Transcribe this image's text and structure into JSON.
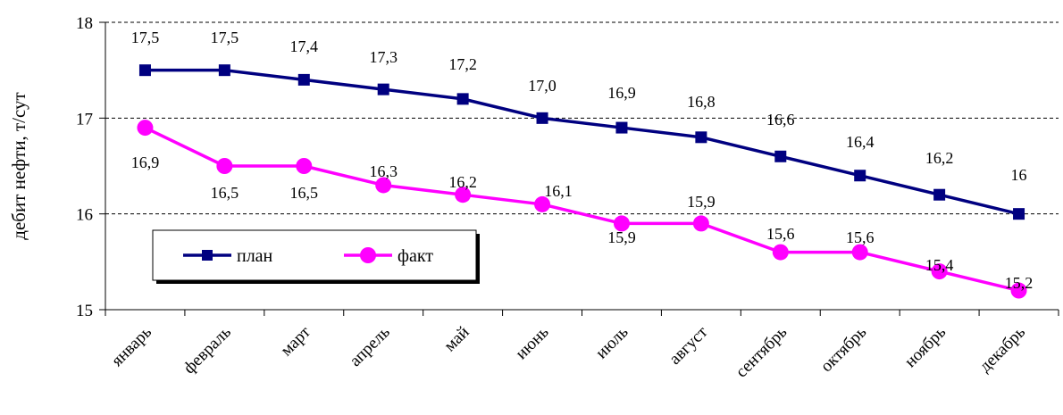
{
  "chart_data": {
    "type": "line",
    "categories": [
      "январь",
      "февраль",
      "март",
      "апрель",
      "май",
      "июнь",
      "июль",
      "август",
      "сентябрь",
      "октябрь",
      "ноябрь",
      "декабрь"
    ],
    "series": [
      {
        "name": "план",
        "values": [
          17.5,
          17.5,
          17.4,
          17.3,
          17.2,
          17.0,
          16.9,
          16.8,
          16.6,
          16.4,
          16.2,
          16.0
        ],
        "labels": [
          "17,5",
          "17,5",
          "17,4",
          "17,3",
          "17,2",
          "17,0",
          "16,9",
          "16,8",
          "16,6",
          "16,4",
          "16,2",
          "16"
        ],
        "color": "#000080",
        "marker": "square"
      },
      {
        "name": "факт",
        "values": [
          16.9,
          16.5,
          16.5,
          16.3,
          16.2,
          16.1,
          15.9,
          15.9,
          15.6,
          15.6,
          15.4,
          15.2
        ],
        "labels": [
          "16,9",
          "16,5",
          "16,5",
          "16,3",
          "16,2",
          "16,1",
          "15,9",
          "15,9",
          "15,6",
          "15,6",
          "15,4",
          "15,2"
        ],
        "color": "#ff00ff",
        "marker": "circle"
      }
    ],
    "ylabel": "дебит нефти, т/сут",
    "xlabel": "",
    "title": "",
    "ylim": [
      15,
      18
    ],
    "yticks": [
      "15",
      "16",
      "17",
      "18"
    ],
    "grid": "horizontal dashed",
    "legend_position": "lower-left inside"
  }
}
